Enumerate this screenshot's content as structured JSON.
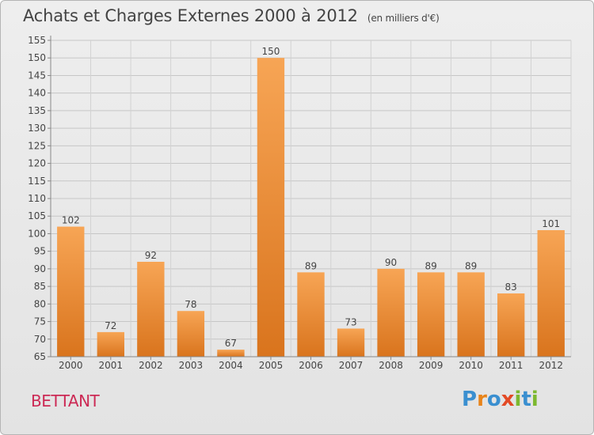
{
  "header": {
    "title": "Achats et Charges Externes 2000 à 2012",
    "subtitle": "(en milliers d'€)"
  },
  "commune": "BETTANT",
  "logo": {
    "text": "Proxiti",
    "letters": [
      "P",
      "r",
      "o",
      "x",
      "i",
      "t",
      "i"
    ],
    "colors": [
      "#3a8fd0",
      "#e8841a",
      "#3a8fd0",
      "#e34a25",
      "#7cb82f",
      "#3a8fd0",
      "#7cb82f"
    ]
  },
  "chart_data": {
    "type": "bar",
    "title": "Achats et Charges Externes 2000 à 2012",
    "subtitle": "(en milliers d'€)",
    "categories": [
      "2000",
      "2001",
      "2002",
      "2003",
      "2004",
      "2005",
      "2006",
      "2007",
      "2008",
      "2009",
      "2010",
      "2011",
      "2012"
    ],
    "values": [
      102,
      72,
      92,
      78,
      67,
      150,
      89,
      73,
      90,
      89,
      89,
      83,
      101
    ],
    "value_labels": [
      "102",
      "72",
      "92",
      "78",
      "67",
      "150",
      "89",
      "73",
      "90",
      "89",
      "89",
      "83",
      "101"
    ],
    "ylim": [
      65,
      155
    ],
    "yticks": [
      "65",
      "70",
      "75",
      "80",
      "85",
      "90",
      "95",
      "100",
      "105",
      "110",
      "115",
      "120",
      "125",
      "130",
      "135",
      "140",
      "145",
      "150",
      "155"
    ],
    "grid": true,
    "bar_color_top": "#f7a555",
    "bar_color_bottom": "#d9741d"
  }
}
